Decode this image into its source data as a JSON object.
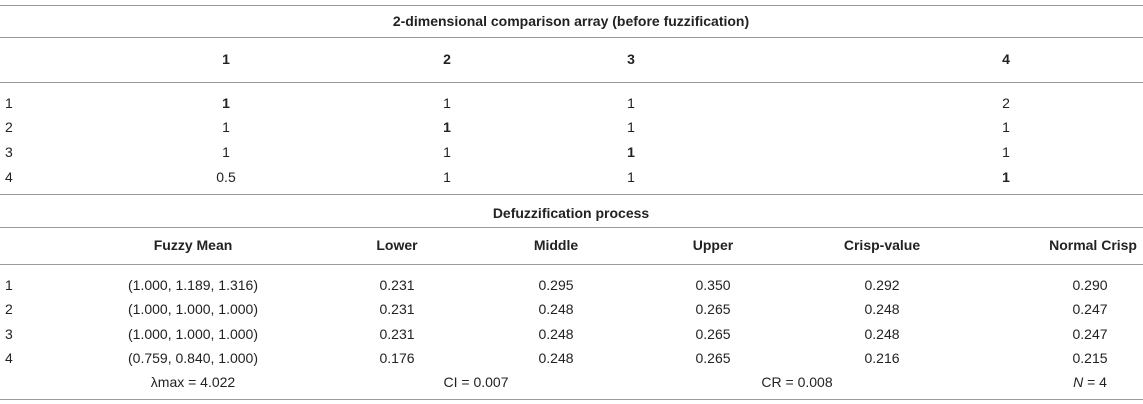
{
  "top_section": {
    "title": "2-dimensional comparison array (before fuzzification)",
    "headers": [
      "1",
      "2",
      "3",
      "4"
    ],
    "rows": [
      {
        "label": "1",
        "cells": [
          "1",
          "1",
          "1",
          "2"
        ]
      },
      {
        "label": "2",
        "cells": [
          "1",
          "1",
          "1",
          "1"
        ]
      },
      {
        "label": "3",
        "cells": [
          "1",
          "1",
          "1",
          "1"
        ]
      },
      {
        "label": "4",
        "cells": [
          "0.5",
          "1",
          "1",
          "1"
        ]
      }
    ]
  },
  "bottom_section": {
    "title": "Defuzzification process",
    "headers": [
      "Fuzzy Mean",
      "Lower",
      "Middle",
      "Upper",
      "Crisp-value",
      "Normal Crisp"
    ],
    "rows": [
      {
        "label": "1",
        "fuzzy_mean": "(1.000, 1.189, 1.316)",
        "lower": "0.231",
        "middle": "0.295",
        "upper": "0.350",
        "crisp": "0.292",
        "normal": "0.290"
      },
      {
        "label": "2",
        "fuzzy_mean": "(1.000, 1.000, 1.000)",
        "lower": "0.231",
        "middle": "0.248",
        "upper": "0.265",
        "crisp": "0.248",
        "normal": "0.247"
      },
      {
        "label": "3",
        "fuzzy_mean": "(1.000, 1.000, 1.000)",
        "lower": "0.231",
        "middle": "0.248",
        "upper": "0.265",
        "crisp": "0.248",
        "normal": "0.247"
      },
      {
        "label": "4",
        "fuzzy_mean": "(0.759, 0.840, 1.000)",
        "lower": "0.176",
        "middle": "0.248",
        "upper": "0.265",
        "crisp": "0.216",
        "normal": "0.215"
      }
    ],
    "footer": {
      "lambda_max": "λmax = 4.022",
      "ci": "CI = 0.007",
      "cr": "CR = 0.008",
      "n_label": "N",
      "n_value": " = 4"
    }
  }
}
